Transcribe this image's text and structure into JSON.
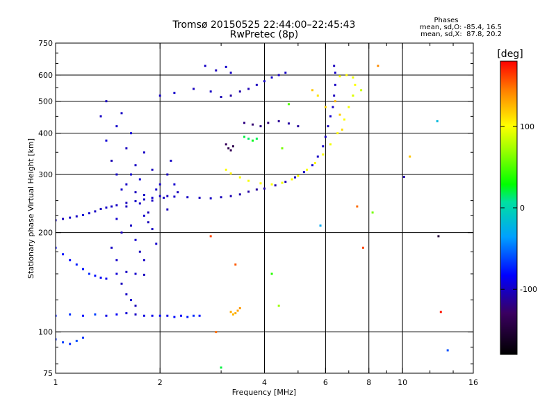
{
  "header": {
    "title": "Tromsø 20150525 22:44:00–22:45:43",
    "subtitle": "RwPretec (8p)",
    "stats_title": "Phases",
    "stats_line1": "mean, sd,O: -85.4, 16.5",
    "stats_line2": "mean, sd,X:  87.8, 20.2"
  },
  "colorbar": {
    "unit": "[deg]",
    "min": -180,
    "max": 180,
    "ticks": [
      {
        "value": 100,
        "label": "100"
      },
      {
        "value": 0,
        "label": "0"
      },
      {
        "value": -100,
        "label": "-100"
      }
    ]
  },
  "chart_data": {
    "type": "scatter",
    "title": "Tromsø 20150525 22:44:00–22:45:43",
    "subtitle": "RwPretec (8p)",
    "xlabel": "Frequency [MHz]",
    "ylabel": "Stationary phase Virtual Height [km]",
    "x_scale": "log",
    "y_scale": "log",
    "xlim": [
      1,
      16
    ],
    "ylim": [
      75,
      750
    ],
    "x_ticks": [
      {
        "value": 1,
        "label": "1"
      },
      {
        "value": 2,
        "label": "2"
      },
      {
        "value": 4,
        "label": "4"
      },
      {
        "value": 6,
        "label": "6"
      },
      {
        "value": 8,
        "label": "8"
      },
      {
        "value": 10,
        "label": "10"
      },
      {
        "value": 16,
        "label": "16"
      }
    ],
    "y_ticks": [
      {
        "value": 75,
        "label": "75"
      },
      {
        "value": 100,
        "label": "100"
      },
      {
        "value": 200,
        "label": "200"
      },
      {
        "value": 300,
        "label": "300"
      },
      {
        "value": 400,
        "label": "400"
      },
      {
        "value": 500,
        "label": "500"
      },
      {
        "value": 600,
        "label": "600"
      },
      {
        "value": 750,
        "label": "750"
      }
    ],
    "grid_x": [
      2,
      4,
      6,
      8,
      10
    ],
    "grid_y": [
      100,
      200,
      300,
      400,
      500,
      600
    ],
    "grid": true,
    "colorbar": {
      "label": "[deg]",
      "range": [
        -180,
        180
      ]
    },
    "series": [
      {
        "points": [
          [
            1.0,
            218,
            -100
          ],
          [
            1.05,
            220,
            -102
          ],
          [
            1.1,
            222,
            -98
          ],
          [
            1.15,
            224,
            -100
          ],
          [
            1.2,
            226,
            -95
          ],
          [
            1.25,
            229,
            -97
          ],
          [
            1.3,
            232,
            -100
          ],
          [
            1.35,
            236,
            -102
          ],
          [
            1.4,
            238,
            -98
          ],
          [
            1.5,
            242,
            -100
          ],
          [
            1.6,
            246,
            -102
          ],
          [
            1.7,
            249,
            -98
          ],
          [
            1.8,
            252,
            -100
          ],
          [
            1.9,
            255,
            -97
          ],
          [
            2.0,
            258,
            -100
          ],
          [
            2.1,
            258,
            -102
          ],
          [
            2.2,
            257,
            -98
          ],
          [
            2.4,
            256,
            -100
          ],
          [
            2.6,
            255,
            -102
          ],
          [
            2.8,
            254,
            -100
          ],
          [
            3.0,
            256,
            -103
          ],
          [
            3.2,
            258,
            -105
          ],
          [
            3.4,
            261,
            -108
          ],
          [
            3.6,
            266,
            -110
          ],
          [
            3.8,
            270,
            -112
          ],
          [
            4.0,
            272,
            -110
          ],
          [
            4.3,
            278,
            -108
          ],
          [
            4.6,
            285,
            -105
          ],
          [
            4.9,
            294,
            -103
          ],
          [
            5.2,
            305,
            -100
          ],
          [
            5.5,
            320,
            -97
          ],
          [
            5.7,
            340,
            -100
          ],
          [
            5.9,
            365,
            -98
          ],
          [
            6.0,
            390,
            -100
          ],
          [
            6.1,
            420,
            -102
          ],
          [
            6.2,
            450,
            -98
          ],
          [
            6.3,
            480,
            -100
          ],
          [
            6.35,
            520,
            -102
          ],
          [
            6.4,
            560,
            -100
          ],
          [
            6.4,
            610,
            -98
          ],
          [
            6.35,
            640,
            -102
          ]
        ]
      },
      {
        "points": [
          [
            3.1,
            310,
            100
          ],
          [
            3.2,
            302,
            105
          ],
          [
            3.4,
            294,
            100
          ],
          [
            3.6,
            287,
            98
          ],
          [
            3.9,
            282,
            102
          ],
          [
            4.2,
            280,
            100
          ],
          [
            4.5,
            283,
            96
          ],
          [
            4.8,
            290,
            103
          ],
          [
            5.0,
            297,
            100
          ],
          [
            5.3,
            310,
            98
          ],
          [
            5.6,
            325,
            102
          ],
          [
            5.9,
            345,
            100
          ],
          [
            6.2,
            370,
            97
          ],
          [
            6.5,
            400,
            103
          ],
          [
            6.8,
            440,
            100
          ],
          [
            7.0,
            480,
            98
          ],
          [
            7.2,
            520,
            102
          ],
          [
            7.3,
            560,
            100
          ],
          [
            7.2,
            590,
            95
          ],
          [
            6.9,
            600,
            103
          ],
          [
            6.6,
            595,
            100
          ]
        ]
      },
      {
        "points": [
          [
            1.0,
            95,
            -70
          ],
          [
            1.05,
            93,
            -65
          ],
          [
            1.1,
            92,
            -72
          ],
          [
            1.15,
            94,
            -60
          ],
          [
            1.2,
            96,
            -68
          ],
          [
            1.0,
            112,
            -75
          ],
          [
            1.1,
            113,
            -70
          ],
          [
            1.2,
            112,
            -80
          ],
          [
            1.3,
            113,
            -65
          ],
          [
            1.4,
            112,
            -90
          ],
          [
            1.5,
            113,
            -85
          ],
          [
            1.6,
            114,
            -95
          ],
          [
            1.7,
            113,
            -100
          ],
          [
            1.8,
            112,
            -92
          ],
          [
            1.9,
            112,
            -88
          ],
          [
            2.0,
            112,
            -85
          ],
          [
            2.1,
            112,
            -90
          ],
          [
            2.2,
            111,
            -80
          ],
          [
            2.3,
            112,
            -85
          ],
          [
            2.4,
            111,
            -75
          ],
          [
            2.5,
            112,
            -70
          ],
          [
            2.6,
            112,
            -78
          ]
        ]
      },
      {
        "points": [
          [
            1.0,
            180,
            -80
          ],
          [
            1.05,
            172,
            -78
          ],
          [
            1.1,
            165,
            -82
          ],
          [
            1.15,
            160,
            -75
          ],
          [
            1.2,
            155,
            -78
          ],
          [
            1.25,
            150,
            -72
          ],
          [
            1.3,
            148,
            -80
          ],
          [
            1.35,
            146,
            -85
          ],
          [
            1.4,
            145,
            -88
          ],
          [
            1.5,
            150,
            -95
          ],
          [
            1.6,
            152,
            -100
          ],
          [
            1.7,
            150,
            -98
          ],
          [
            1.8,
            149,
            -102
          ]
        ]
      },
      {
        "points": [
          [
            1.35,
            450,
            -100
          ],
          [
            1.4,
            380,
            -95
          ],
          [
            1.45,
            330,
            -105
          ],
          [
            1.5,
            300,
            -100
          ],
          [
            1.55,
            270,
            -98
          ],
          [
            1.6,
            240,
            -102
          ],
          [
            1.65,
            210,
            -100
          ],
          [
            1.7,
            190,
            -97
          ],
          [
            1.75,
            175,
            -103
          ],
          [
            1.8,
            165,
            -100
          ],
          [
            1.5,
            420,
            -98
          ],
          [
            1.6,
            360,
            -102
          ],
          [
            1.7,
            320,
            -100
          ],
          [
            1.75,
            290,
            -95
          ],
          [
            1.8,
            260,
            -100
          ],
          [
            1.85,
            230,
            -105
          ],
          [
            1.9,
            205,
            -100
          ],
          [
            1.95,
            185,
            -98
          ],
          [
            1.4,
            500,
            -102
          ],
          [
            1.55,
            460,
            -100
          ],
          [
            1.65,
            400,
            -95
          ],
          [
            1.8,
            350,
            -100
          ],
          [
            1.9,
            310,
            -102
          ],
          [
            2.0,
            280,
            -98
          ],
          [
            2.05,
            255,
            -100
          ],
          [
            2.1,
            235,
            -103
          ],
          [
            1.45,
            240,
            -100
          ],
          [
            1.5,
            220,
            -97
          ],
          [
            1.55,
            200,
            -102
          ],
          [
            1.45,
            180,
            -100
          ],
          [
            1.5,
            165,
            -98
          ],
          [
            1.55,
            140,
            -102
          ],
          [
            1.6,
            130,
            -100
          ],
          [
            1.65,
            125,
            -97
          ],
          [
            1.7,
            120,
            -103
          ],
          [
            1.6,
            280,
            -100
          ],
          [
            1.65,
            300,
            -98
          ],
          [
            1.7,
            265,
            -102
          ],
          [
            1.75,
            245,
            -100
          ],
          [
            1.8,
            225,
            -97
          ],
          [
            1.85,
            215,
            -103
          ],
          [
            1.9,
            250,
            -100
          ],
          [
            1.95,
            270,
            -98
          ],
          [
            2.1,
            300,
            -102
          ],
          [
            2.15,
            330,
            -100
          ],
          [
            2.2,
            280,
            -97
          ],
          [
            2.25,
            265,
            -103
          ]
        ]
      },
      {
        "points": [
          [
            2.0,
            520,
            -100
          ],
          [
            2.2,
            530,
            -98
          ],
          [
            2.5,
            545,
            -102
          ],
          [
            2.8,
            535,
            -100
          ],
          [
            3.0,
            515,
            -105
          ],
          [
            3.2,
            520,
            -110
          ],
          [
            3.4,
            535,
            -108
          ],
          [
            3.6,
            545,
            -105
          ],
          [
            3.8,
            560,
            -102
          ],
          [
            4.0,
            575,
            -100
          ],
          [
            4.2,
            590,
            -98
          ],
          [
            4.4,
            600,
            -102
          ],
          [
            4.6,
            610,
            -100
          ],
          [
            2.7,
            640,
            -100
          ],
          [
            2.9,
            620,
            -102
          ],
          [
            3.1,
            635,
            -98
          ],
          [
            3.2,
            610,
            -100
          ]
        ]
      },
      {
        "points": [
          [
            3.1,
            370,
            -130
          ],
          [
            3.15,
            360,
            -140
          ],
          [
            3.2,
            355,
            -135
          ],
          [
            3.25,
            365,
            -138
          ],
          [
            3.5,
            430,
            -120
          ],
          [
            3.7,
            425,
            -125
          ],
          [
            3.9,
            420,
            -118
          ],
          [
            4.1,
            430,
            -122
          ],
          [
            4.4,
            435,
            -115
          ],
          [
            4.7,
            428,
            -110
          ],
          [
            5.0,
            420,
            -112
          ]
        ]
      },
      {
        "points": [
          [
            3.5,
            390,
            20
          ],
          [
            3.6,
            385,
            15
          ],
          [
            3.7,
            380,
            25
          ],
          [
            3.8,
            385,
            18
          ],
          [
            3.2,
            115,
            130
          ],
          [
            3.25,
            113,
            125
          ],
          [
            3.3,
            114,
            128
          ],
          [
            3.35,
            116,
            132
          ],
          [
            3.4,
            118,
            135
          ],
          [
            5.5,
            540,
            120
          ],
          [
            5.7,
            520,
            110
          ],
          [
            6.0,
            480,
            115
          ],
          [
            6.4,
            500,
            125
          ],
          [
            6.6,
            455,
            118
          ],
          [
            6.7,
            410,
            112
          ],
          [
            7.2,
            520,
            90
          ],
          [
            7.6,
            540,
            85
          ],
          [
            8.5,
            640,
            140
          ],
          [
            10.5,
            340,
            120
          ],
          [
            8.2,
            230,
            60
          ],
          [
            10.1,
            295,
            -110
          ],
          [
            12.7,
            195,
            -150
          ],
          [
            12.9,
            115,
            175
          ],
          [
            12.6,
            435,
            -20
          ],
          [
            13.5,
            88,
            -60
          ],
          [
            5.8,
            210,
            -30
          ],
          [
            2.8,
            195,
            160
          ],
          [
            3.3,
            160,
            155
          ],
          [
            4.2,
            150,
            40
          ],
          [
            4.4,
            120,
            70
          ],
          [
            2.9,
            100,
            150
          ],
          [
            4.7,
            490,
            50
          ],
          [
            4.5,
            360,
            60
          ],
          [
            7.4,
            240,
            150
          ],
          [
            7.7,
            180,
            160
          ],
          [
            3.0,
            78,
            20
          ]
        ]
      }
    ]
  }
}
